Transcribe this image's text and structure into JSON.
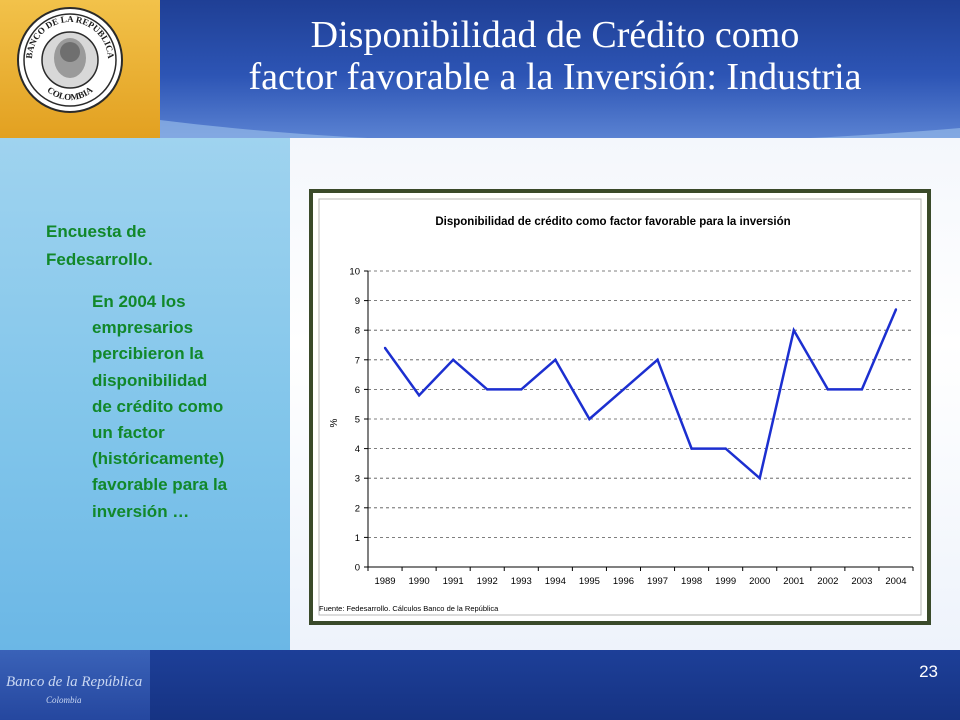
{
  "header": {
    "title_line1": "Disponibilidad de Crédito como",
    "title_line2": "factor favorable a la Inversión: Industria",
    "seal_top_text": "BANCO DE LA REPUBLICA",
    "seal_bottom_text": "COLOMBIA"
  },
  "notes": {
    "source_heading": "Encuesta de Fedesarrollo.",
    "summary": "En 2004 los\nempresarios\npercibieron la\ndisponibilidad\nde crédito como\nun factor\n(históricamente)\nfavorable para la\ninversión …"
  },
  "footer": {
    "logo_text": "Banco de la República",
    "logo_sub": "Colombia",
    "page_number": "23"
  },
  "colors": {
    "header_blue": "#2d55b5",
    "gold": "#e2a020",
    "note_green": "#11882a",
    "series_blue": "#1c2fd0"
  },
  "chart_data": {
    "type": "line",
    "title": "Disponibilidad de crédito como factor favorable para la inversión",
    "xlabel": "",
    "ylabel": "%",
    "categories": [
      "1989",
      "1990",
      "1991",
      "1992",
      "1993",
      "1994",
      "1995",
      "1996",
      "1997",
      "1998",
      "1999",
      "2000",
      "2001",
      "2002",
      "2003",
      "2004"
    ],
    "values": [
      7.4,
      5.8,
      7.0,
      6.0,
      6.0,
      7.0,
      5.0,
      6.0,
      7.0,
      4.0,
      4.0,
      3.0,
      8.0,
      6.0,
      6.0,
      8.7
    ],
    "ylim": [
      0,
      10
    ],
    "yticks": [
      "0",
      "1",
      "2",
      "3",
      "4",
      "5",
      "6",
      "7",
      "8",
      "9",
      "10"
    ],
    "grid": true,
    "legend": "none",
    "source_note": "Fuente: Fedesarrollo. Cálculos Banco de la República"
  }
}
